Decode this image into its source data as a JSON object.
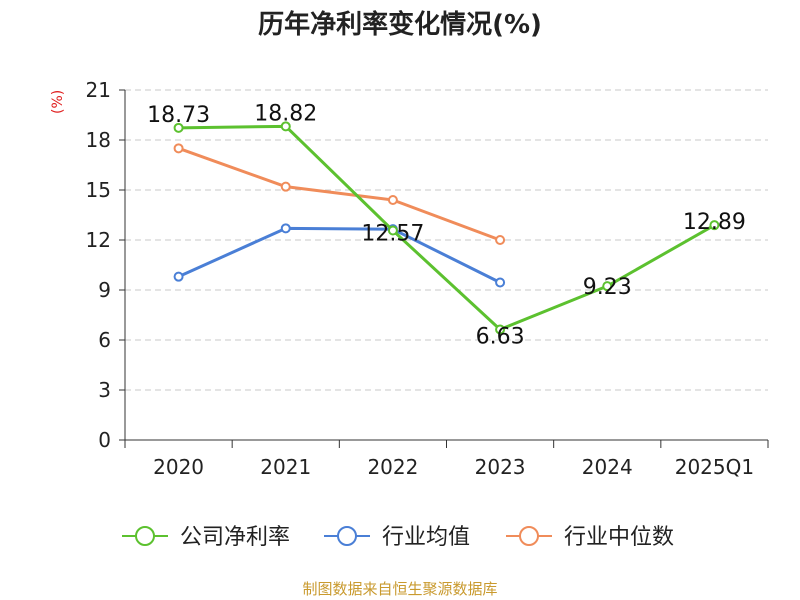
{
  "chart_data": {
    "type": "line",
    "title": "历年净利率变化情况(%)",
    "ylabel": "(%)",
    "categories": [
      "2020",
      "2021",
      "2022",
      "2023",
      "2024",
      "2025Q1"
    ],
    "ylim": [
      0,
      21
    ],
    "yticks": [
      0,
      3,
      6,
      9,
      12,
      15,
      18,
      21
    ],
    "grid": true,
    "legend_position": "bottom",
    "series": [
      {
        "name": "公司净利率",
        "color": "#5cc12f",
        "values": [
          18.73,
          18.82,
          12.57,
          6.63,
          9.23,
          12.89
        ],
        "labels": [
          "18.73",
          "18.82",
          "12.57",
          "6.63",
          "9.23",
          "12.89"
        ]
      },
      {
        "name": "行业均值",
        "color": "#4a7fd6",
        "values": [
          9.8,
          12.7,
          12.65,
          9.45,
          null,
          null
        ]
      },
      {
        "name": "行业中位数",
        "color": "#f08c5a",
        "values": [
          17.5,
          15.2,
          14.4,
          12.0,
          null,
          null
        ]
      }
    ]
  },
  "footer": {
    "source": "制图数据来自恒生聚源数据库"
  }
}
